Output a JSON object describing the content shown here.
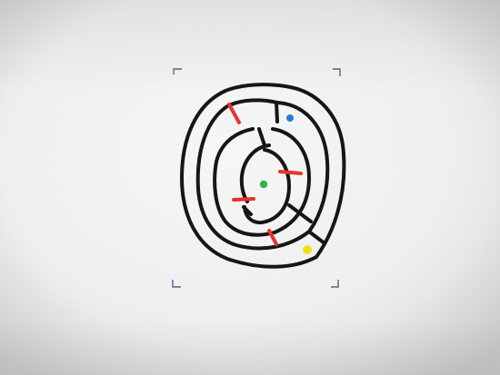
{
  "scene": {
    "paper_color": "#efefef",
    "paper_highlight": "#f6f6f6",
    "paper_shadow": "#d8d8d8",
    "ink_color": "#1a1a1a",
    "corner_mark_color": "#5d5f8a"
  },
  "maze": {
    "walls_color": "#161616",
    "barrier_color": "#e8332b",
    "start_color": "#2fb34a",
    "goal_blue_color": "#2a7fd1",
    "goal_yellow_color": "#f2de17"
  }
}
